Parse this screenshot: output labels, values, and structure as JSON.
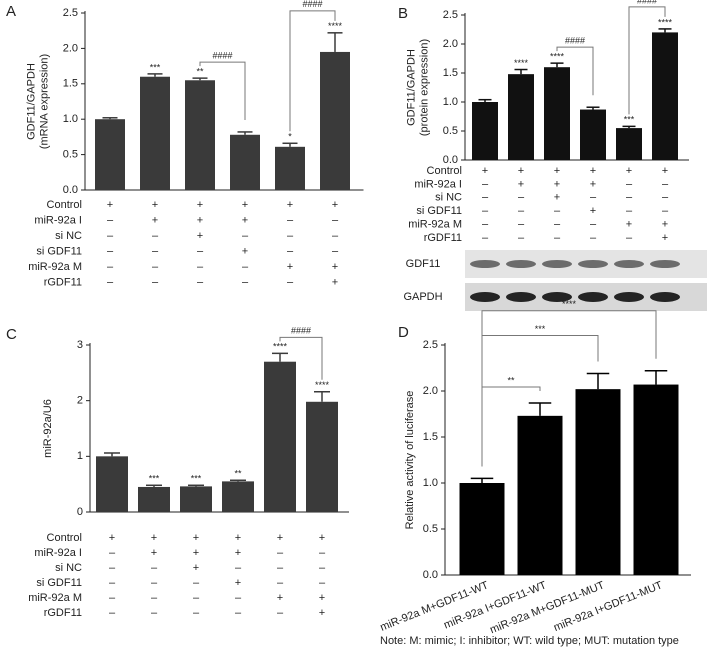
{
  "chart_data": [
    {
      "type": "bar",
      "panel": "A",
      "y_label": [
        "GDF11/GAPDH",
        "(mRNA expression)"
      ],
      "values": [
        1.0,
        1.6,
        1.55,
        0.78,
        0.61,
        1.95
      ],
      "errors": [
        0.02,
        0.04,
        0.03,
        0.04,
        0.05,
        0.27
      ],
      "stars": [
        null,
        "***",
        "**",
        null,
        "*",
        "****"
      ],
      "color": "#3a3a3a",
      "brackets": [
        {
          "bars": [
            2,
            3
          ],
          "label": "####"
        },
        {
          "bars": [
            4,
            5
          ],
          "label": "####"
        }
      ],
      "ylim": [
        0,
        2.5
      ],
      "yticks": [
        {
          "value": 0,
          "label": "0.0"
        },
        0.5,
        {
          "value": 1,
          "label": "1.0"
        },
        1.5,
        {
          "value": 2,
          "label": "2.0"
        },
        2.5
      ],
      "treatments": [
        {
          "name": "Control",
          "signs": [
            "+",
            "+",
            "+",
            "+",
            "+",
            "+"
          ]
        },
        {
          "name": "miR-92a I",
          "signs": [
            "–",
            "+",
            "+",
            "+",
            "–",
            "–"
          ]
        },
        {
          "name": "si NC",
          "signs": [
            "–",
            "–",
            "+",
            "–",
            "–",
            "–"
          ]
        },
        {
          "name": "si GDF11",
          "signs": [
            "–",
            "–",
            "–",
            "+",
            "–",
            "–"
          ]
        },
        {
          "name": "miR-92a M",
          "signs": [
            "–",
            "–",
            "–",
            "–",
            "+",
            "+"
          ]
        },
        {
          "name": "rGDF11",
          "signs": [
            "–",
            "–",
            "–",
            "–",
            "–",
            "+"
          ]
        }
      ]
    },
    {
      "type": "bar",
      "panel": "B",
      "y_label": [
        "GDF11/GAPDH",
        "(protein expression)"
      ],
      "values": [
        1.0,
        1.48,
        1.6,
        0.87,
        0.55,
        2.2
      ],
      "errors": [
        0.04,
        0.08,
        0.07,
        0.04,
        0.03,
        0.06
      ],
      "stars": [
        null,
        "****",
        "****",
        null,
        "***",
        "****"
      ],
      "color": "#111111",
      "brackets": [
        {
          "bars": [
            2,
            3
          ],
          "label": "####"
        },
        {
          "bars": [
            4,
            5
          ],
          "label": "####"
        }
      ],
      "ylim": [
        0,
        2.5
      ],
      "yticks": [
        {
          "value": 0,
          "label": "0.0"
        },
        0.5,
        {
          "value": 1,
          "label": "1.0"
        },
        1.5,
        {
          "value": 2,
          "label": "2.0"
        },
        2.5
      ],
      "treatments": [
        {
          "name": "Control",
          "signs": [
            "+",
            "+",
            "+",
            "+",
            "+",
            "+"
          ]
        },
        {
          "name": "miR-92a I",
          "signs": [
            "–",
            "+",
            "+",
            "+",
            "–",
            "–"
          ]
        },
        {
          "name": "si NC",
          "signs": [
            "–",
            "–",
            "+",
            "–",
            "–",
            "–"
          ]
        },
        {
          "name": "si GDF11",
          "signs": [
            "–",
            "–",
            "–",
            "+",
            "–",
            "–"
          ]
        },
        {
          "name": "miR-92a M",
          "signs": [
            "–",
            "–",
            "–",
            "–",
            "+",
            "+"
          ]
        },
        {
          "name": "rGDF11",
          "signs": [
            "–",
            "–",
            "–",
            "–",
            "–",
            "+"
          ]
        }
      ],
      "blot_labels": [
        "GDF11",
        "GAPDH"
      ]
    },
    {
      "type": "bar",
      "panel": "C",
      "y_label": [
        "miR-92a/U6"
      ],
      "values": [
        1.0,
        0.45,
        0.46,
        0.55,
        2.7,
        1.98
      ],
      "errors": [
        0.06,
        0.03,
        0.02,
        0.02,
        0.15,
        0.18
      ],
      "stars": [
        null,
        "***",
        "***",
        "**",
        "****",
        "****"
      ],
      "color": "#3a3a3a",
      "brackets": [
        {
          "bars": [
            4,
            5
          ],
          "label": "####"
        }
      ],
      "ylim": [
        0,
        3
      ],
      "yticks": [
        0,
        1,
        2,
        3
      ],
      "treatments": [
        {
          "name": "Control",
          "signs": [
            "+",
            "+",
            "+",
            "+",
            "+",
            "+"
          ]
        },
        {
          "name": "miR-92a I",
          "signs": [
            "–",
            "+",
            "+",
            "+",
            "–",
            "–"
          ]
        },
        {
          "name": "si NC",
          "signs": [
            "–",
            "–",
            "+",
            "–",
            "–",
            "–"
          ]
        },
        {
          "name": "si GDF11",
          "signs": [
            "–",
            "–",
            "–",
            "+",
            "–",
            "–"
          ]
        },
        {
          "name": "miR-92a M",
          "signs": [
            "–",
            "–",
            "–",
            "–",
            "+",
            "+"
          ]
        },
        {
          "name": "rGDF11",
          "signs": [
            "–",
            "–",
            "–",
            "–",
            "–",
            "+"
          ]
        }
      ]
    },
    {
      "type": "bar",
      "panel": "D",
      "y_label": [
        "Relative activity of luciferase"
      ],
      "categories": [
        "miR-92a M+GDF11-WT",
        "miR-92a I+GDF11-WT",
        "miR-92a M+GDF11-MUT",
        "miR-92a I+GDF11-MUT"
      ],
      "values": [
        1.0,
        1.73,
        2.02,
        2.07
      ],
      "errors": [
        0.05,
        0.14,
        0.17,
        0.15
      ],
      "color": "#000000",
      "brackets": [
        {
          "bars": [
            0,
            1
          ],
          "label": "**"
        },
        {
          "bars": [
            0,
            2
          ],
          "label": "***"
        },
        {
          "bars": [
            0,
            3
          ],
          "label": "****"
        }
      ],
      "ylim": [
        0,
        2.5
      ],
      "yticks": [
        {
          "value": 0,
          "label": "0.0"
        },
        0.5,
        {
          "value": 1,
          "label": "1.0"
        },
        1.5,
        {
          "value": 2,
          "label": "2.0"
        },
        2.5
      ],
      "note": "Note: M: mimic; I: inhibitor; WT: wild type; MUT: mutation type"
    }
  ]
}
